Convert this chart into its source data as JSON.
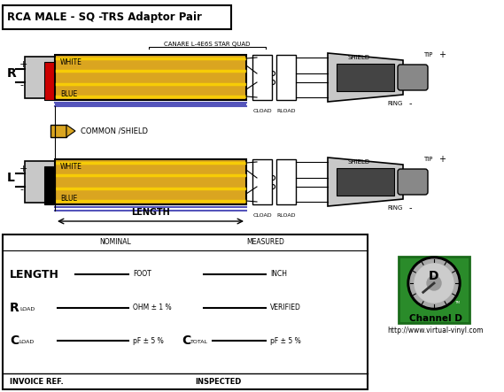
{
  "title": "RCA MALE - SQ -TRS Adaptor Pair",
  "bg_color": "#ffffff",
  "gold_color": "#DAA520",
  "gold_light": "#FFD700",
  "red_color": "#CC0000",
  "blue_color": "#5555BB",
  "light_gray": "#C8C8C8",
  "mid_gray": "#888888",
  "dark_gray": "#444444",
  "green_color": "#2A8B2A",
  "cable_label": "CANARE L-4E6S STAR QUAD",
  "common_label": "COMMON /SHIELD",
  "length_label": "LENGTH",
  "r_label": "R",
  "l_label": "L",
  "white_label": "WHITE",
  "blue_label": "BLUE",
  "shield_label": "SHIELD",
  "tip_label": "TIP",
  "ring_label": "RING",
  "cload_label": "CLOAD",
  "rload_label": "RLOAD",
  "plus": "+",
  "minus": "-",
  "table_nominal": "NOMINAL",
  "table_measured": "MEASURED",
  "table_length": "LENGTH",
  "table_foot": "FOOT",
  "table_inch": "INCH",
  "table_ohm": "OHM ± 1 %",
  "table_verified": "VERIFIED",
  "table_pf": "pF ± 5 %",
  "table_invoice": "INVOICE REF.",
  "table_inspected": "INSPECTED",
  "channel_d": "Channel D",
  "url": "http://www.virtual-vinyl.com"
}
